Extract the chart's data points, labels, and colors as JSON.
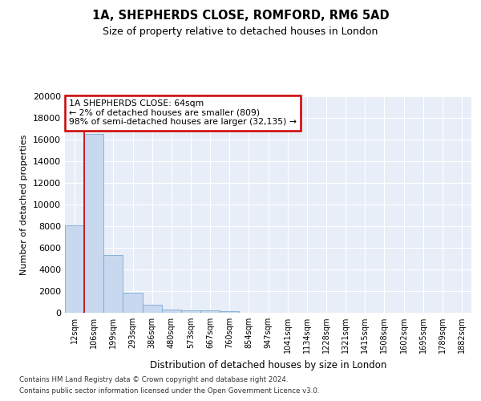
{
  "title1": "1A, SHEPHERDS CLOSE, ROMFORD, RM6 5AD",
  "title2": "Size of property relative to detached houses in London",
  "xlabel": "Distribution of detached houses by size in London",
  "ylabel": "Number of detached properties",
  "categories": [
    "12sqm",
    "106sqm",
    "199sqm",
    "293sqm",
    "386sqm",
    "480sqm",
    "573sqm",
    "667sqm",
    "760sqm",
    "854sqm",
    "947sqm",
    "1041sqm",
    "1134sqm",
    "1228sqm",
    "1321sqm",
    "1415sqm",
    "1508sqm",
    "1602sqm",
    "1695sqm",
    "1789sqm",
    "1882sqm"
  ],
  "bar_values": [
    8100,
    16500,
    5300,
    1850,
    750,
    330,
    250,
    200,
    175,
    0,
    0,
    0,
    0,
    0,
    0,
    0,
    0,
    0,
    0,
    0,
    0
  ],
  "bar_color": "#c8d8ef",
  "bar_edge_color": "#7aaad4",
  "annotation_text": "1A SHEPHERDS CLOSE: 64sqm\n← 2% of detached houses are smaller (809)\n98% of semi-detached houses are larger (32,135) →",
  "annotation_box_color": "#ffffff",
  "annotation_box_edge_color": "#cc0000",
  "vline_x": 0.5,
  "vline_color": "#cc0000",
  "ylim": [
    0,
    20000
  ],
  "yticks": [
    0,
    2000,
    4000,
    6000,
    8000,
    10000,
    12000,
    14000,
    16000,
    18000,
    20000
  ],
  "footer1": "Contains HM Land Registry data © Crown copyright and database right 2024.",
  "footer2": "Contains public sector information licensed under the Open Government Licence v3.0.",
  "bg_color": "#ffffff",
  "plot_bg_color": "#e8eef8",
  "grid_color": "#ffffff"
}
